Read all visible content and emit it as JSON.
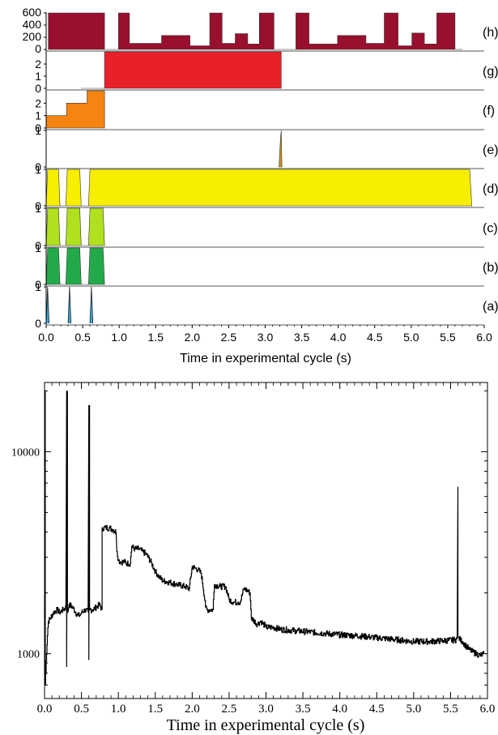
{
  "colors": {
    "axis": "#000000",
    "h": "#990f2e",
    "g": "#e8202a",
    "f": "#f58510",
    "e": "#c8961e",
    "d": "#f7ee00",
    "c": "#b0e01e",
    "b": "#22aa4a",
    "a": "#39a8d8",
    "trace": "#000000"
  },
  "chart_data": [
    {
      "type": "area",
      "subtype": "stacked-timing-panels",
      "xlabel": "Time in experimental cycle (s)",
      "xlim": [
        0,
        6
      ],
      "x_ticks": [
        "0.0",
        "0.5",
        "1.0",
        "1.5",
        "2.0",
        "2.5",
        "3.0",
        "3.5",
        "4.0",
        "4.5",
        "5.0",
        "5.5",
        "6.0"
      ],
      "grid": false,
      "panels": [
        {
          "label": "(h)",
          "color_key": "h",
          "ylim": [
            0,
            600
          ],
          "y_ticks": [
            "600",
            "400",
            "200",
            "0"
          ],
          "x": [
            0.03,
            0.03,
            0.8,
            0.8,
            0.99,
            0.99,
            1.14,
            1.14,
            1.58,
            1.58,
            1.97,
            1.97,
            2.24,
            2.24,
            2.41,
            2.41,
            2.59,
            2.59,
            2.76,
            2.76,
            2.92,
            2.92,
            3.12,
            3.12,
            3.42,
            3.42,
            3.6,
            3.6,
            3.99,
            3.99,
            4.38,
            4.38,
            4.63,
            4.63,
            4.82,
            4.82,
            5.01,
            5.01,
            5.18,
            5.18,
            5.35,
            5.35,
            5.6,
            5.6,
            5.7,
            5.7
          ],
          "y": [
            0,
            600,
            600,
            0,
            0,
            600,
            600,
            100,
            100,
            230,
            230,
            60,
            60,
            600,
            600,
            100,
            100,
            260,
            260,
            90,
            90,
            600,
            600,
            0,
            0,
            600,
            600,
            90,
            90,
            230,
            230,
            100,
            100,
            600,
            600,
            60,
            60,
            270,
            270,
            90,
            90,
            600,
            600,
            0,
            0,
            0
          ]
        },
        {
          "label": "(g)",
          "color_key": "g",
          "ylim": [
            0,
            3
          ],
          "y_ticks": [
            "2",
            "1",
            "0"
          ],
          "x": [
            0.48,
            0.8,
            0.8,
            3.22,
            3.22
          ],
          "y": [
            0,
            0,
            3,
            3,
            0
          ]
        },
        {
          "label": "(f)",
          "color_key": "f",
          "ylim": [
            0,
            3
          ],
          "y_ticks": [
            "2",
            "1",
            "0"
          ],
          "x": [
            0.0,
            0.0,
            0.28,
            0.28,
            0.56,
            0.56,
            0.8,
            0.8
          ],
          "y": [
            0,
            1,
            1,
            2,
            2,
            3,
            3,
            0
          ]
        },
        {
          "label": "(e)",
          "color_key": "e",
          "ylim": [
            0,
            1
          ],
          "y_ticks": [
            "1",
            "0"
          ],
          "x": [
            3.19,
            3.21,
            3.22,
            3.23
          ],
          "y": [
            0,
            0.8,
            1,
            0
          ]
        },
        {
          "label": "(d)",
          "color_key": "d",
          "ylim": [
            0,
            1
          ],
          "y_ticks": [
            "1",
            "0"
          ],
          "x": [
            0.0,
            0.02,
            0.17,
            0.19,
            0.27,
            0.29,
            0.46,
            0.48,
            0.58,
            0.6,
            5.8,
            5.83
          ],
          "y": [
            0,
            1,
            1,
            0,
            0,
            1,
            1,
            0,
            0,
            1,
            1,
            0
          ]
        },
        {
          "label": "(c)",
          "color_key": "c",
          "ylim": [
            0,
            1
          ],
          "y_ticks": [
            "1",
            "0"
          ],
          "x": [
            0.0,
            0.02,
            0.17,
            0.19,
            0.27,
            0.29,
            0.46,
            0.48,
            0.58,
            0.6,
            0.78,
            0.8
          ],
          "y": [
            0,
            1,
            1,
            0,
            0,
            1,
            1,
            0,
            0,
            1,
            1,
            0
          ]
        },
        {
          "label": "(b)",
          "color_key": "b",
          "ylim": [
            0,
            1
          ],
          "y_ticks": [
            "1",
            "0"
          ],
          "x": [
            0.0,
            0.02,
            0.17,
            0.19,
            0.27,
            0.29,
            0.46,
            0.48,
            0.58,
            0.6,
            0.78,
            0.8
          ],
          "y": [
            0,
            1,
            1,
            0,
            0,
            1,
            1,
            0,
            0,
            1,
            1,
            0
          ]
        },
        {
          "label": "(a)",
          "color_key": "a",
          "ylim": [
            0,
            1
          ],
          "y_ticks": [
            "1",
            "0"
          ],
          "spikes": [
            0.02,
            0.32,
            0.62
          ],
          "spike_height": 1
        }
      ]
    },
    {
      "type": "line",
      "xlabel": "Time in experimental cycle (s)",
      "ylabel": "",
      "xlim": [
        0,
        6
      ],
      "ylim": [
        600,
        22000
      ],
      "log_y": true,
      "grid": false,
      "x_ticks": [
        "0.0",
        "0.5",
        "1.0",
        "1.5",
        "2.0",
        "2.5",
        "3.0",
        "3.5",
        "4.0",
        "4.5",
        "5.0",
        "5.5",
        "6.0"
      ],
      "y_ticks": [
        {
          "value": 1000,
          "label": "1000"
        },
        {
          "value": 10000,
          "label": "10000"
        }
      ],
      "noise_amplitude": 0.07,
      "series": [
        {
          "x": [
            0.0,
            0.01,
            0.01,
            0.05,
            0.08,
            0.12,
            0.17,
            0.2,
            0.25,
            0.29,
            0.3,
            0.3,
            0.31,
            0.31,
            0.33,
            0.38,
            0.42,
            0.45,
            0.48,
            0.5,
            0.55,
            0.59,
            0.6,
            0.6,
            0.61,
            0.61,
            0.65,
            0.7,
            0.74,
            0.78,
            0.78,
            0.83,
            0.88,
            0.93,
            0.97,
            0.98,
            1.0,
            1.03,
            1.08,
            1.12,
            1.16,
            1.18,
            1.22,
            1.28,
            1.33,
            1.38,
            1.45,
            1.5,
            1.55,
            1.6,
            1.7,
            1.8,
            1.9,
            1.96,
            2.0,
            2.04,
            2.08,
            2.12,
            2.18,
            2.2,
            2.25,
            2.28,
            2.3,
            2.38,
            2.45,
            2.5,
            2.56,
            2.62,
            2.65,
            2.7,
            2.75,
            2.78,
            2.8,
            2.88,
            2.93,
            2.96,
            2.99,
            3.0,
            3.1,
            3.2,
            3.4,
            3.6,
            3.8,
            4.0,
            4.2,
            4.4,
            4.6,
            4.8,
            5.0,
            5.2,
            5.4,
            5.55,
            5.59,
            5.6,
            5.6,
            5.61,
            5.63,
            5.66,
            5.7,
            5.75,
            5.8,
            5.85,
            5.9,
            5.95
          ],
          "y": [
            1500,
            20000,
            700,
            1450,
            1500,
            1600,
            1650,
            1600,
            1650,
            1700,
            20000,
            860,
            20000,
            1600,
            1750,
            1700,
            1600,
            1550,
            1550,
            1600,
            1650,
            1600,
            17000,
            930,
            17000,
            1650,
            1650,
            1700,
            1750,
            1650,
            4200,
            4200,
            4200,
            4100,
            4000,
            3200,
            2900,
            2850,
            2850,
            2800,
            2800,
            3400,
            3300,
            3300,
            3200,
            3100,
            2800,
            2550,
            2400,
            2300,
            2250,
            2200,
            2150,
            2100,
            2700,
            2650,
            2600,
            2500,
            1700,
            1650,
            1650,
            1650,
            2200,
            2150,
            2150,
            1850,
            1800,
            1800,
            1800,
            2100,
            2050,
            2000,
            1500,
            1400,
            1450,
            1400,
            1380,
            1350,
            1350,
            1320,
            1300,
            1280,
            1260,
            1240,
            1230,
            1210,
            1190,
            1170,
            1150,
            1150,
            1160,
            1170,
            1180,
            6700,
            1220,
            1200,
            1170,
            1150,
            1100,
            1050,
            1020,
            1000,
            980,
            1000
          ]
        }
      ]
    }
  ]
}
